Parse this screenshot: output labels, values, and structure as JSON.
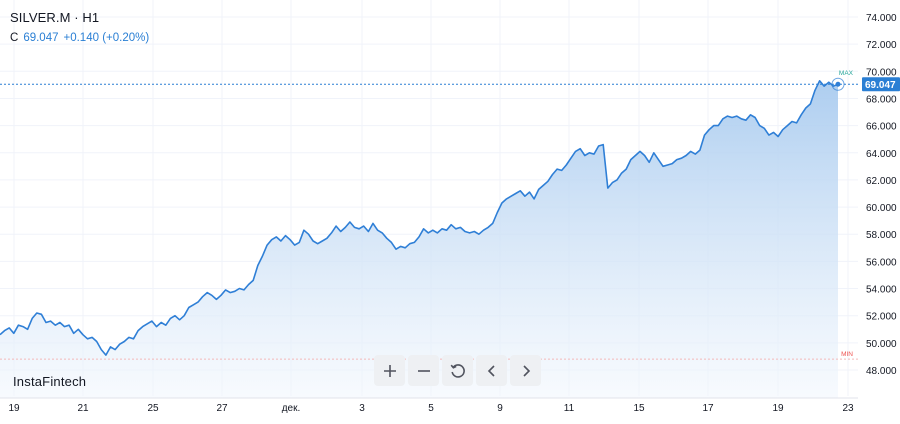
{
  "header": {
    "title": "SILVER.M · H1",
    "close_label": "C",
    "close_value": "69.047",
    "change": "+0.140 (+0.20%)"
  },
  "watermark": "InstaFintech",
  "toolbar": [
    "zoom-in-icon",
    "zoom-out-icon",
    "reset-icon",
    "chevron-left-icon",
    "chevron-right-icon"
  ],
  "colors": {
    "line": "#2f7fd6",
    "fill_top": "#a9cbef",
    "fill_bottom": "#f2f7fd",
    "max_marker": "#26a69a",
    "min_marker": "#ef5350",
    "last_price_bg": "#2a7fd4",
    "crosshair": "#2a7fd4"
  },
  "chart_data": {
    "type": "area",
    "ylim": [
      47,
      75
    ],
    "y_ticks": [
      "74.000",
      "72.000",
      "70.000",
      "68.000",
      "66.000",
      "64.000",
      "62.000",
      "60.000",
      "58.000",
      "56.000",
      "54.000",
      "52.000",
      "50.000",
      "48.000"
    ],
    "x_ticks": [
      "19",
      "21",
      "25",
      "27",
      "дек.",
      "3",
      "5",
      "9",
      "11",
      "15",
      "17",
      "19",
      "23"
    ],
    "last_price": "69.047",
    "last_price_value": 69.047,
    "max_label": "MAX",
    "max_value": 69.3,
    "min_label": "MIN",
    "min_value": 48.8,
    "series": [
      {
        "values": [
          50.6,
          50.9,
          51.1,
          50.7,
          51.3,
          51.2,
          51.0,
          51.8,
          52.2,
          52.1,
          51.5,
          51.6,
          51.3,
          51.5,
          51.2,
          51.3,
          50.7,
          51.0,
          50.6,
          50.3,
          50.4,
          50.1,
          49.5,
          49.1,
          49.7,
          49.5,
          49.9,
          50.1,
          50.4,
          50.3,
          50.9,
          51.2,
          51.4,
          51.6,
          51.2,
          51.5,
          51.3,
          51.8,
          52.0,
          51.7,
          52.0,
          52.6,
          52.8,
          53.0,
          53.4,
          53.7,
          53.5,
          53.2,
          53.5,
          53.9,
          53.7,
          53.8,
          54.0,
          53.9,
          54.3,
          54.6,
          55.7,
          56.4,
          57.2,
          57.6,
          57.8,
          57.5,
          57.9,
          57.6,
          57.2,
          57.4,
          58.3,
          58.0,
          57.5,
          57.3,
          57.5,
          57.7,
          58.1,
          58.6,
          58.2,
          58.5,
          58.9,
          58.5,
          58.4,
          58.6,
          58.2,
          58.8,
          58.3,
          58.1,
          57.7,
          57.4,
          56.9,
          57.1,
          57.0,
          57.3,
          57.4,
          57.8,
          58.4,
          58.1,
          58.3,
          58.1,
          58.4,
          58.3,
          58.7,
          58.4,
          58.5,
          58.2,
          58.1,
          58.2,
          58.0,
          58.3,
          58.5,
          58.8,
          59.6,
          60.3,
          60.6,
          60.8,
          61.0,
          61.2,
          60.8,
          61.1,
          60.6,
          61.3,
          61.6,
          61.9,
          62.4,
          62.8,
          62.7,
          63.1,
          63.6,
          64.1,
          64.3,
          63.8,
          64.0,
          63.9,
          64.5,
          64.6,
          61.4,
          61.8,
          62.0,
          62.5,
          62.8,
          63.5,
          63.8,
          64.1,
          63.8,
          63.3,
          64.0,
          63.5,
          63.0,
          63.1,
          63.2,
          63.5,
          63.6,
          63.8,
          64.1,
          63.9,
          64.2,
          65.3,
          65.7,
          66.0,
          66.0,
          66.5,
          66.7,
          66.6,
          66.7,
          66.5,
          66.4,
          66.8,
          66.6,
          66.0,
          65.8,
          65.3,
          65.5,
          65.2,
          65.7,
          66.0,
          66.3,
          66.2,
          66.8,
          67.3,
          67.6,
          68.6,
          69.3,
          68.9,
          69.2,
          68.9,
          69.047
        ]
      }
    ]
  }
}
